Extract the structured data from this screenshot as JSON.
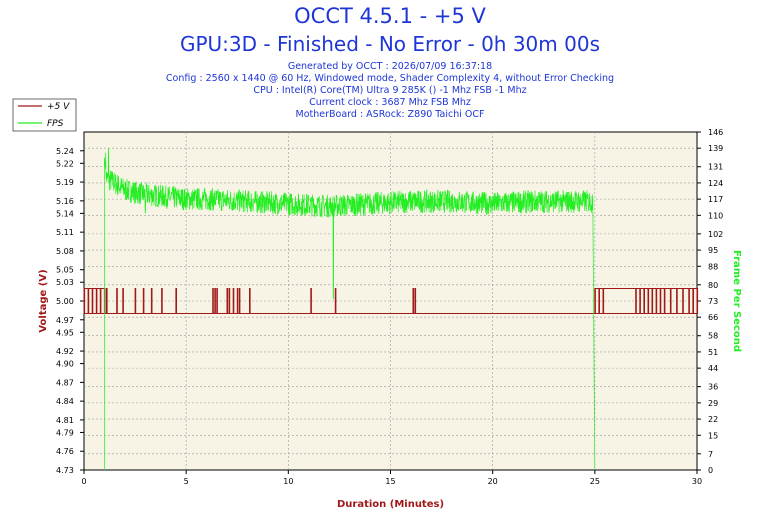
{
  "chart_data": {
    "type": "line",
    "title": "OCCT 4.5.1 - +5 V",
    "subtitle": "GPU:3D - Finished - No Error - 0h 30m 00s",
    "info_lines": [
      "Generated by OCCT : 2026/07/09 16:37:18",
      "Config : 2560 x 1440 @ 60 Hz, Windowed mode, Shader Complexity 4, without Error Checking",
      "CPU : Intel(R) Core(TM) Ultra 9 285K () -1 Mhz FSB -1 Mhz",
      "Current clock : 3687 Mhz FSB  Mhz",
      "MotherBoard : ASRock: Z890 Taichi OCF"
    ],
    "xlabel": "Duration (Minutes)",
    "ylabel_left": "Voltage (V)",
    "ylabel_right": "Frame Per Second",
    "xlim": [
      0,
      30
    ],
    "ylim_left": [
      4.73,
      5.27
    ],
    "ylim_right": [
      0,
      146
    ],
    "x_ticks": [
      "0",
      "5",
      "10",
      "15",
      "20",
      "25",
      "30"
    ],
    "y_ticks_left": [
      "4.73",
      "4.76",
      "4.79",
      "4.81",
      "4.84",
      "4.87",
      "4.90",
      "4.92",
      "4.95",
      "4.97",
      "5.00",
      "5.03",
      "5.05",
      "5.08",
      "5.11",
      "5.14",
      "5.16",
      "5.19",
      "5.22",
      "5.24"
    ],
    "y_ticks_right": [
      "0",
      "7",
      "15",
      "22",
      "29",
      "36",
      "44",
      "51",
      "58",
      "66",
      "73",
      "80",
      "88",
      "95",
      "102",
      "110",
      "117",
      "124",
      "131",
      "139",
      "146"
    ],
    "grid": true,
    "legend_position": "top-left",
    "series": [
      {
        "name": "+5 V",
        "color": "#a01818",
        "baseline": 4.98,
        "high": 5.02,
        "spike_x": [
          0.0,
          0.2,
          0.4,
          0.6,
          0.8,
          1.0,
          1.1,
          1.6,
          1.9,
          2.5,
          2.9,
          3.3,
          3.8,
          4.5,
          6.3,
          6.4,
          6.5,
          7.0,
          7.1,
          7.3,
          7.5,
          7.6,
          8.1,
          11.1,
          12.3,
          16.1,
          16.2,
          25.0,
          25.2,
          25.4,
          27.0,
          27.2,
          27.4,
          27.6,
          27.8,
          28.0,
          28.2,
          28.4,
          28.7,
          29.0,
          29.3,
          29.6,
          29.8,
          30.0
        ]
      },
      {
        "name": "FPS",
        "color": "#22ee22",
        "x": [
          1.0,
          1.05,
          1.1,
          1.5,
          2,
          3,
          4,
          5,
          6,
          8,
          10,
          12,
          14,
          16,
          18,
          20,
          22,
          24,
          24.9,
          25.0,
          25.05
        ],
        "values": [
          0,
          135,
          126,
          124,
          121,
          119,
          118,
          117,
          117,
          116,
          115,
          114,
          115,
          116,
          116,
          115,
          116,
          116,
          116,
          0,
          0
        ],
        "noise_amplitude": 5,
        "dips": [
          [
            3.0,
            111
          ],
          [
            12.2,
            74
          ],
          [
            1.2,
            139
          ]
        ]
      }
    ]
  }
}
